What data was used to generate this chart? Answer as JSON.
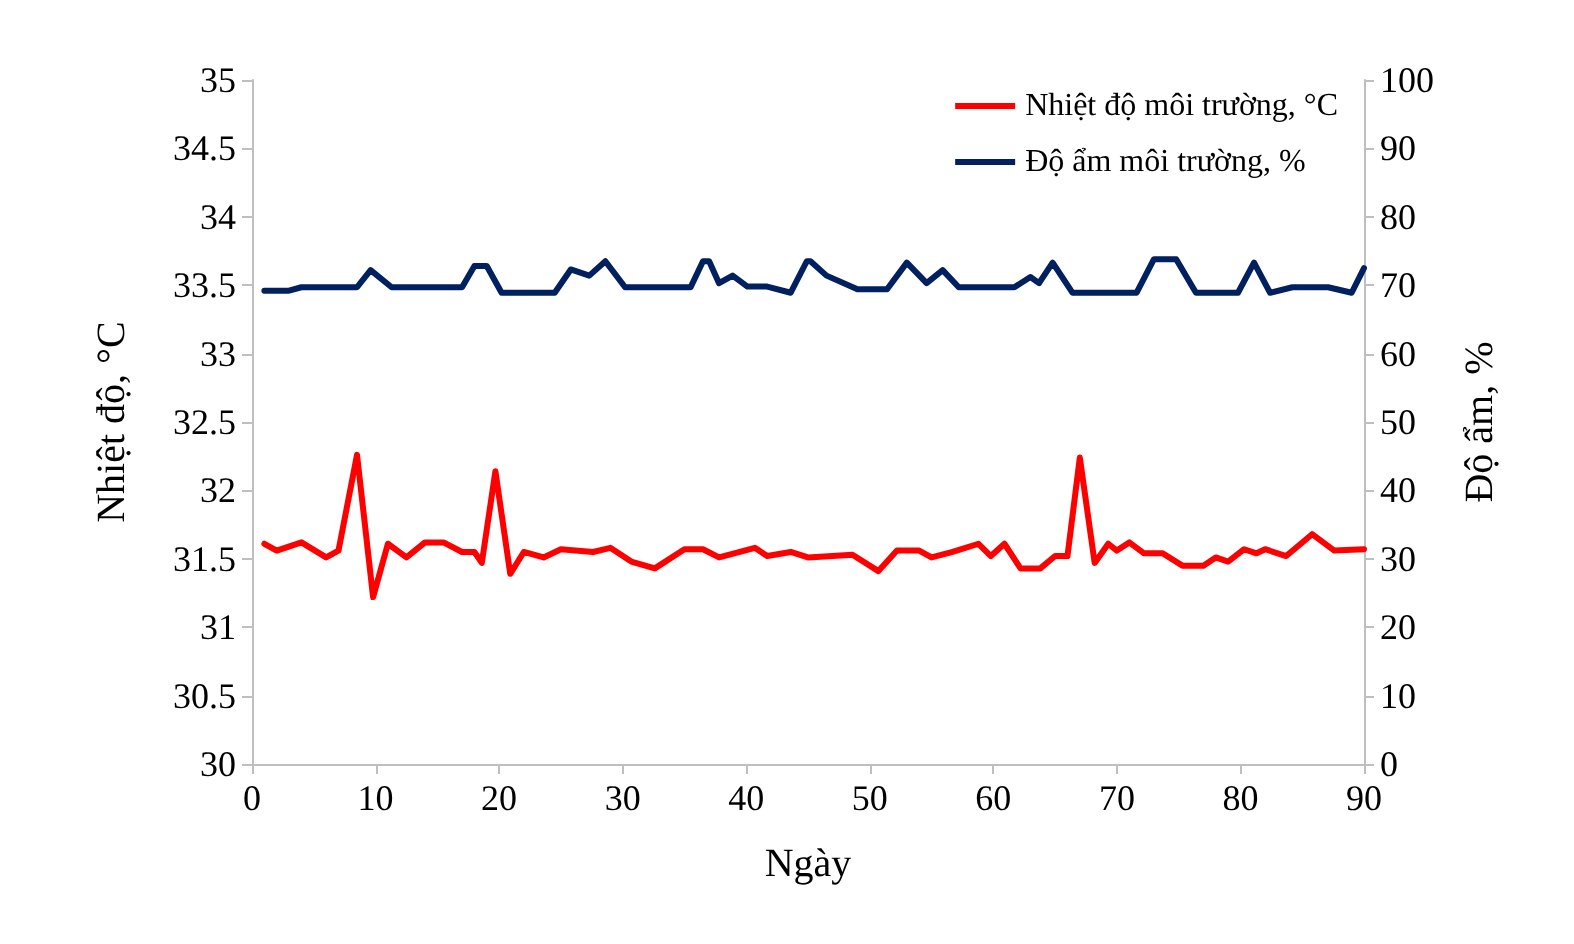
{
  "chart_data": {
    "type": "line",
    "xlabel": "Ngày",
    "ylabel": "Nhiệt độ, °C",
    "y2label": "Độ ẩm, %",
    "xlim": [
      0,
      90
    ],
    "xticks": [
      0,
      10,
      20,
      30,
      40,
      50,
      60,
      70,
      80,
      90
    ],
    "ylim": [
      30,
      35
    ],
    "yticks": [
      30,
      30.5,
      31,
      31.5,
      32,
      32.5,
      33,
      33.5,
      34,
      34.5,
      35
    ],
    "y2lim": [
      0,
      100
    ],
    "y2ticks": [
      0,
      10,
      20,
      30,
      40,
      50,
      60,
      70,
      80,
      90,
      100
    ],
    "grid": false,
    "legend": "top right",
    "marker": "none",
    "line_style": "solid",
    "series": [
      {
        "name": "Nhiệt độ môi trường, °C",
        "color": "#ff0000",
        "x": [
          1,
          2,
          4,
          6,
          7,
          8.5,
          9.8,
          11,
          12.5,
          14,
          15.5,
          17,
          18,
          18.6,
          19.7,
          20.9,
          22,
          23.6,
          25,
          27.6,
          29,
          30.7,
          32.6,
          35,
          36.5,
          37.8,
          40.7,
          41.7,
          43.6,
          45,
          48.6,
          50.7,
          52.2,
          54,
          55,
          56.7,
          58.8,
          59.8,
          60.9,
          62.2,
          63.8,
          65,
          66,
          67,
          68.2,
          69.3,
          70,
          71,
          72.2,
          73.7,
          75.3,
          77,
          78,
          79,
          80.3,
          81.3,
          82,
          83.7,
          85.8,
          87.6,
          90
        ],
        "values": [
          31.61,
          31.56,
          31.62,
          31.51,
          31.56,
          32.26,
          31.22,
          31.61,
          31.51,
          31.62,
          31.62,
          31.55,
          31.55,
          31.47,
          32.14,
          31.39,
          31.55,
          31.51,
          31.57,
          31.55,
          31.58,
          31.48,
          31.43,
          31.57,
          31.57,
          31.51,
          31.58,
          31.52,
          31.55,
          31.51,
          31.53,
          31.41,
          31.56,
          31.56,
          31.51,
          31.55,
          31.61,
          31.52,
          31.61,
          31.43,
          31.43,
          31.52,
          31.52,
          32.24,
          31.47,
          31.61,
          31.56,
          31.62,
          31.54,
          31.54,
          31.45,
          31.45,
          31.51,
          31.48,
          31.57,
          31.54,
          31.57,
          31.52,
          31.68,
          31.56,
          31.57
        ]
      },
      {
        "name": "Độ ẩm môi trường, %",
        "color": "#002060",
        "axis": "y2",
        "x": [
          1,
          3,
          4,
          8.5,
          9.6,
          11.3,
          17,
          18,
          19,
          20.2,
          24.5,
          25.8,
          27.3,
          28.6,
          30.2,
          35.5,
          36.5,
          37,
          37.8,
          38.9,
          40.1,
          41.7,
          43.6,
          44.9,
          45.2,
          46.5,
          49,
          51.4,
          53,
          54.6,
          55.9,
          57.2,
          61.7,
          63,
          63.7,
          64.8,
          66.4,
          71.6,
          73,
          74.8,
          76.4,
          79.8,
          81.1,
          82.4,
          84.2,
          87.1,
          89,
          90
        ],
        "values": [
          69.2,
          69.2,
          69.7,
          69.7,
          72.2,
          69.7,
          69.7,
          72.8,
          72.8,
          68.9,
          68.9,
          72.3,
          71.4,
          73.5,
          69.7,
          69.7,
          73.5,
          73.5,
          70.3,
          71.4,
          69.8,
          69.8,
          68.9,
          73.5,
          73.5,
          71.4,
          69.4,
          69.4,
          73.3,
          70.3,
          72.2,
          69.7,
          69.7,
          71.2,
          70.3,
          73.3,
          68.9,
          68.9,
          73.8,
          73.8,
          68.9,
          68.9,
          73.3,
          68.9,
          69.7,
          69.7,
          68.9,
          72.5
        ]
      }
    ]
  }
}
